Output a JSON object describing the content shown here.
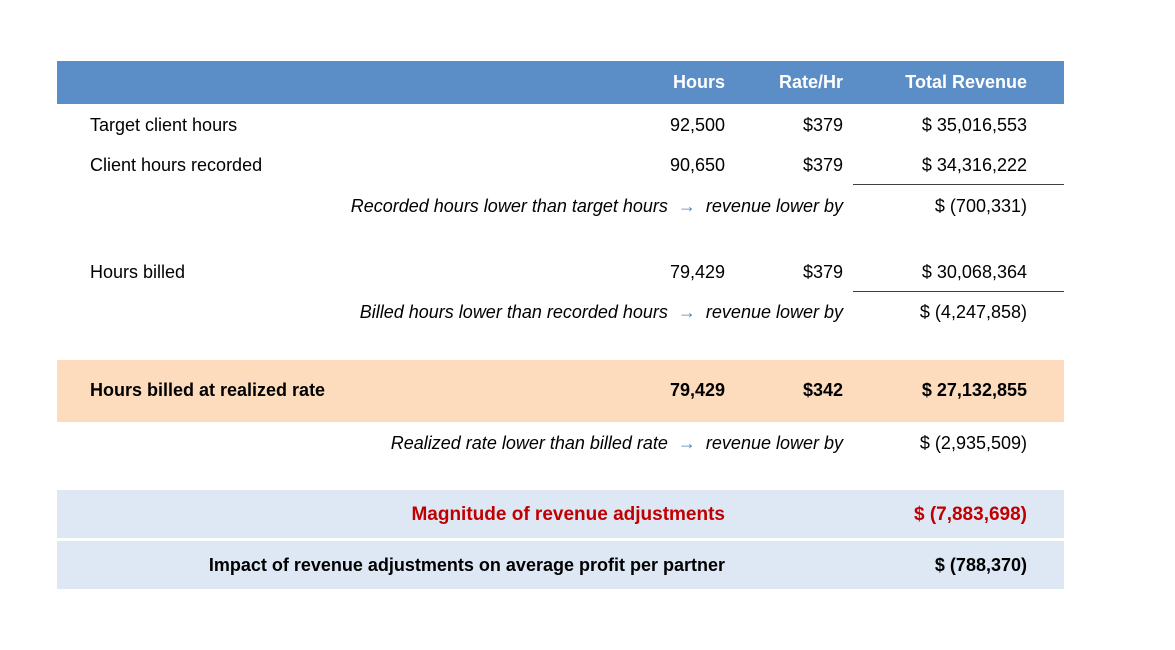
{
  "header": {
    "hours": "Hours",
    "rate": "Rate/Hr",
    "total": "Total Revenue"
  },
  "rows": [
    {
      "label": "Target client hours",
      "hours": "92,500",
      "rate": "$379",
      "total": "$ 35,016,553"
    },
    {
      "label": "Client hours recorded",
      "hours": "90,650",
      "rate": "$379",
      "total": "$ 34,316,222"
    },
    {
      "note_left": "Recorded hours lower than target hours",
      "arrow": "→",
      "note_right": "revenue lower by",
      "total": "$ (700,331)"
    },
    {
      "label": "Hours billed",
      "hours": "79,429",
      "rate": "$379",
      "total": "$ 30,068,364"
    },
    {
      "note_left": "Billed hours lower than recorded hours",
      "arrow": "→",
      "note_right": "revenue lower by",
      "total": "$ (4,247,858)"
    },
    {
      "label": "Hours billed at realized rate",
      "hours": "79,429",
      "rate": "$342",
      "total": "$ 27,132,855"
    },
    {
      "note_left": "Realized rate lower than billed rate",
      "arrow": "→",
      "note_right": "revenue lower by",
      "total": "$ (2,935,509)"
    }
  ],
  "summary": [
    {
      "label": "Magnitude of revenue adjustments",
      "total": "$ (7,883,698)"
    },
    {
      "label": "Impact of revenue adjustments on average profit per partner",
      "total": "$ (788,370)"
    }
  ],
  "colors": {
    "header_bg": "#5b8ec7",
    "highlight_bg": "#fddbbd",
    "summary_bg": "#dde8f4",
    "emphasis_text": "#c00000",
    "arrow": "#4f81bd"
  }
}
